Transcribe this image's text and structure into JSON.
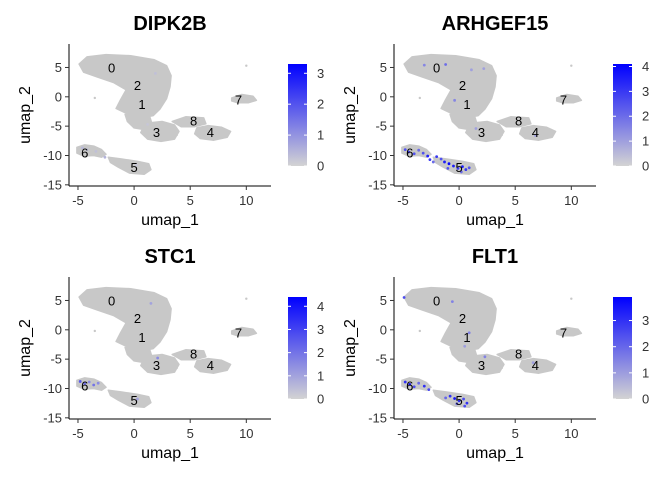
{
  "figure": {
    "colors": {
      "low": "#d3d3d3",
      "high": "#0000ff",
      "cluster_fill": "#c8c8c8"
    }
  },
  "chart_data": [
    {
      "type": "scatter",
      "title": "DIPK2B",
      "xlabel": "umap_1",
      "ylabel": "umap_2",
      "xlim": [
        -5.8,
        12.2
      ],
      "ylim": [
        -15.2,
        9
      ],
      "xticks": [
        -5,
        0,
        5,
        10
      ],
      "yticks": [
        5,
        0,
        -5,
        -10,
        -15
      ],
      "legend": {
        "position": "right",
        "ticks": [
          0,
          1,
          2,
          3
        ],
        "max": 3.3
      },
      "clusters": [
        {
          "label": "0",
          "x": -2,
          "y": 5
        },
        {
          "label": "2",
          "x": 0.3,
          "y": 2
        },
        {
          "label": "1",
          "x": 0.7,
          "y": -1.2
        },
        {
          "label": "8",
          "x": 5.3,
          "y": -4
        },
        {
          "label": "3",
          "x": 2,
          "y": -6
        },
        {
          "label": "4",
          "x": 6.8,
          "y": -6
        },
        {
          "label": "7",
          "x": 9.3,
          "y": -0.5
        },
        {
          "label": "6",
          "x": -4.4,
          "y": -9.5
        },
        {
          "label": "5",
          "x": 0,
          "y": -12
        }
      ],
      "points": [
        {
          "x": -4.6,
          "y": -8.7,
          "value": 0.4
        },
        {
          "x": -4.2,
          "y": -9,
          "value": 0.3
        },
        {
          "x": -3.4,
          "y": -9.3,
          "value": 0.3
        },
        {
          "x": -2.6,
          "y": -10.3,
          "value": 0.5
        },
        {
          "x": 0.2,
          "y": -11.6,
          "value": 0.2
        },
        {
          "x": 1.9,
          "y": 4,
          "value": 0.3
        },
        {
          "x": 1.2,
          "y": -4.7,
          "value": 0.2
        }
      ]
    },
    {
      "type": "scatter",
      "title": "ARHGEF15",
      "xlabel": "umap_1",
      "ylabel": "umap_2",
      "xlim": [
        -5.8,
        12.2
      ],
      "ylim": [
        -15.2,
        9
      ],
      "xticks": [
        -5,
        0,
        5,
        10
      ],
      "yticks": [
        5,
        0,
        -5,
        -10,
        -15
      ],
      "legend": {
        "position": "right",
        "ticks": [
          0,
          1,
          2,
          3,
          4
        ],
        "max": 4.1
      },
      "clusters": [
        {
          "label": "0",
          "x": -2,
          "y": 5
        },
        {
          "label": "2",
          "x": 0.3,
          "y": 2
        },
        {
          "label": "1",
          "x": 0.7,
          "y": -1.2
        },
        {
          "label": "8",
          "x": 5.3,
          "y": -4
        },
        {
          "label": "3",
          "x": 2,
          "y": -6
        },
        {
          "label": "4",
          "x": 6.8,
          "y": -6
        },
        {
          "label": "7",
          "x": 9.3,
          "y": -0.5
        },
        {
          "label": "6",
          "x": -4.4,
          "y": -9.5
        },
        {
          "label": "5",
          "x": 0,
          "y": -12
        }
      ],
      "points": [
        {
          "x": -3.1,
          "y": 5.4,
          "value": 1.5
        },
        {
          "x": -1.2,
          "y": 5.5,
          "value": 2
        },
        {
          "x": 1.1,
          "y": 4.6,
          "value": 1
        },
        {
          "x": -0.4,
          "y": -0.6,
          "value": 1.5
        },
        {
          "x": 2.2,
          "y": 4.8,
          "value": 1
        },
        {
          "x": -4.8,
          "y": -9,
          "value": 2.5
        },
        {
          "x": -4.5,
          "y": -9.4,
          "value": 3
        },
        {
          "x": -4,
          "y": -9.7,
          "value": 2.5
        },
        {
          "x": -3.6,
          "y": -9.1,
          "value": 2
        },
        {
          "x": -3.2,
          "y": -9.6,
          "value": 2.5
        },
        {
          "x": -2.8,
          "y": -10.1,
          "value": 3.5
        },
        {
          "x": -2.6,
          "y": -10.7,
          "value": 3
        },
        {
          "x": -2,
          "y": -10.2,
          "value": 3
        },
        {
          "x": -1.6,
          "y": -10.6,
          "value": 2.5
        },
        {
          "x": -1.3,
          "y": -11.1,
          "value": 3.5
        },
        {
          "x": -0.9,
          "y": -11.4,
          "value": 4
        },
        {
          "x": -0.5,
          "y": -11.8,
          "value": 3.5
        },
        {
          "x": -0.1,
          "y": -12.2,
          "value": 3
        },
        {
          "x": 0.3,
          "y": -11.9,
          "value": 3.5
        },
        {
          "x": 0.6,
          "y": -12.4,
          "value": 3
        },
        {
          "x": 0.9,
          "y": -12.1,
          "value": 2.5
        },
        {
          "x": -1,
          "y": -12.2,
          "value": 2.5
        },
        {
          "x": -2.3,
          "y": -11.1,
          "value": 2
        },
        {
          "x": 0.2,
          "y": -12.8,
          "value": 2
        },
        {
          "x": 6.8,
          "y": -6.6,
          "value": 1
        },
        {
          "x": 1.5,
          "y": -5.4,
          "value": 1
        }
      ]
    },
    {
      "type": "scatter",
      "title": "STC1",
      "xlabel": "umap_1",
      "ylabel": "umap_2",
      "xlim": [
        -5.8,
        12.2
      ],
      "ylim": [
        -15.2,
        9
      ],
      "xticks": [
        -5,
        0,
        5,
        10
      ],
      "yticks": [
        5,
        0,
        -5,
        -10,
        -15
      ],
      "legend": {
        "position": "right",
        "ticks": [
          0,
          1,
          2,
          3,
          4
        ],
        "max": 4.4
      },
      "clusters": [
        {
          "label": "0",
          "x": -2,
          "y": 5
        },
        {
          "label": "2",
          "x": 0.3,
          "y": 2
        },
        {
          "label": "1",
          "x": 0.7,
          "y": -1.2
        },
        {
          "label": "8",
          "x": 5.3,
          "y": -4
        },
        {
          "label": "3",
          "x": 2,
          "y": -6
        },
        {
          "label": "4",
          "x": 6.8,
          "y": -6
        },
        {
          "label": "7",
          "x": 9.3,
          "y": -0.5
        },
        {
          "label": "6",
          "x": -4.4,
          "y": -9.5
        },
        {
          "label": "5",
          "x": 0,
          "y": -12
        }
      ],
      "points": [
        {
          "x": -4.8,
          "y": -8.8,
          "value": 2.5
        },
        {
          "x": -4.4,
          "y": -9.2,
          "value": 2
        },
        {
          "x": -4,
          "y": -8.9,
          "value": 1.5
        },
        {
          "x": -3.6,
          "y": -9.4,
          "value": 2
        },
        {
          "x": -3.2,
          "y": -9.1,
          "value": 1.5
        },
        {
          "x": 1.5,
          "y": 4.5,
          "value": 1
        },
        {
          "x": 2.1,
          "y": -4.8,
          "value": 1.5
        },
        {
          "x": 0.3,
          "y": -11.8,
          "value": 1
        }
      ]
    },
    {
      "type": "scatter",
      "title": "FLT1",
      "xlabel": "umap_1",
      "ylabel": "umap_2",
      "xlim": [
        -5.8,
        12.2
      ],
      "ylim": [
        -15.2,
        9
      ],
      "xticks": [
        -5,
        0,
        5,
        10
      ],
      "yticks": [
        5,
        0,
        -5,
        -10,
        -15
      ],
      "legend": {
        "position": "right",
        "ticks": [
          0,
          1,
          2,
          3
        ],
        "max": 3.9
      },
      "clusters": [
        {
          "label": "0",
          "x": -2,
          "y": 5
        },
        {
          "label": "2",
          "x": 0.3,
          "y": 2
        },
        {
          "label": "1",
          "x": 0.7,
          "y": -1.2
        },
        {
          "label": "8",
          "x": 5.3,
          "y": -4
        },
        {
          "label": "3",
          "x": 2,
          "y": -6
        },
        {
          "label": "4",
          "x": 6.8,
          "y": -6
        },
        {
          "label": "7",
          "x": 9.3,
          "y": -0.5
        },
        {
          "label": "6",
          "x": -4.4,
          "y": -9.5
        },
        {
          "label": "5",
          "x": 0,
          "y": -12
        }
      ],
      "points": [
        {
          "x": -4.9,
          "y": 5.5,
          "value": 2.5
        },
        {
          "x": -0.6,
          "y": 4.8,
          "value": 1.5
        },
        {
          "x": 0.9,
          "y": -0.5,
          "value": 1.5
        },
        {
          "x": 0.5,
          "y": -2.8,
          "value": 1
        },
        {
          "x": 2.3,
          "y": -4.6,
          "value": 1.5
        },
        {
          "x": 6.6,
          "y": -5.6,
          "value": 1
        },
        {
          "x": -4.8,
          "y": -8.9,
          "value": 3
        },
        {
          "x": -4.4,
          "y": -9.3,
          "value": 3.5
        },
        {
          "x": -4,
          "y": -9.7,
          "value": 2.5
        },
        {
          "x": -3.6,
          "y": -9.1,
          "value": 2
        },
        {
          "x": -3.1,
          "y": -9.6,
          "value": 3
        },
        {
          "x": -2.7,
          "y": -10.2,
          "value": 2.5
        },
        {
          "x": -0.8,
          "y": -11.3,
          "value": 3
        },
        {
          "x": -0.4,
          "y": -11.7,
          "value": 3.5
        },
        {
          "x": 0,
          "y": -12.1,
          "value": 3
        },
        {
          "x": 0.4,
          "y": -11.8,
          "value": 2.5
        },
        {
          "x": 0.7,
          "y": -12.5,
          "value": 3
        },
        {
          "x": -0.2,
          "y": -12.6,
          "value": 2
        },
        {
          "x": 0.5,
          "y": -13,
          "value": 2.5
        },
        {
          "x": -1.2,
          "y": -11.6,
          "value": 2
        }
      ]
    }
  ]
}
